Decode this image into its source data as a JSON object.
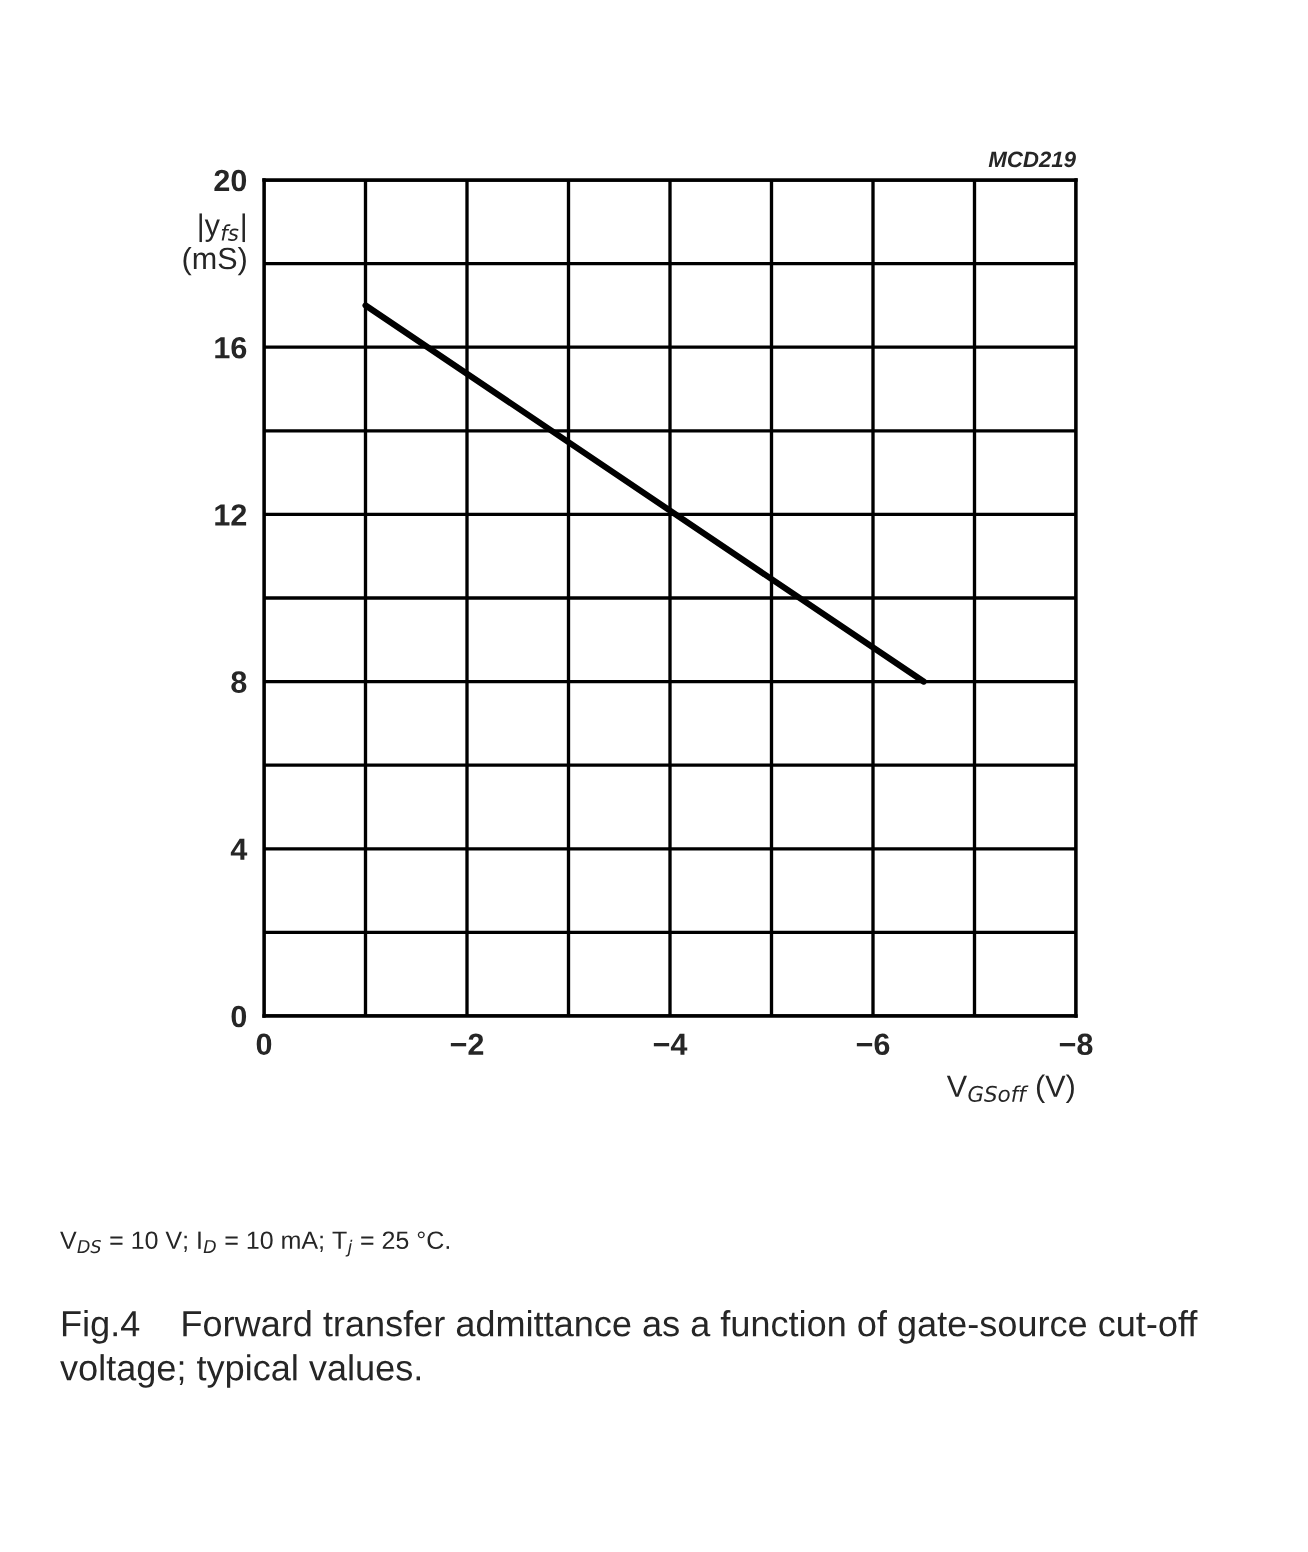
{
  "chart_data": {
    "type": "line",
    "title": "Fig.4    Forward transfer admittance as a function of gate-source cut-off voltage; typical values.",
    "xlabel": "V$_{GSoff}$ (V)",
    "ylabel": "|y$_{fs}$|\n(mS)",
    "annotations": [
      "MCD219",
      "V$_{DS}$ = 10 V; I$_{D}$ = 10 mA; T$_{j}$ = 25 °C."
    ],
    "series": [
      {
        "color": "#000000",
        "x": [
          -1,
          -6.5
        ],
        "values": [
          17,
          8
        ]
      }
    ],
    "xlim": [
      0,
      -8
    ],
    "xticks": [
      0,
      {
        "value": -1,
        "label": null
      },
      {
        "value": -2,
        "label": "−2"
      },
      {
        "value": -3,
        "label": null
      },
      {
        "value": -4,
        "label": "−4"
      },
      {
        "value": -5,
        "label": null
      },
      {
        "value": -6,
        "label": "−6"
      },
      {
        "value": -7,
        "label": null
      },
      {
        "value": -8,
        "label": "−8"
      }
    ],
    "ylim": [
      0,
      20
    ],
    "yticks": [
      0,
      {
        "value": 2,
        "label": null
      },
      4,
      {
        "value": 6,
        "label": null
      },
      8,
      {
        "value": 10,
        "label": null
      },
      12,
      {
        "value": 14,
        "label": null
      },
      16,
      {
        "value": 18,
        "label": null
      },
      20
    ],
    "grid": true,
    "legend": false,
    "marker": "none",
    "line_style": "solid"
  }
}
